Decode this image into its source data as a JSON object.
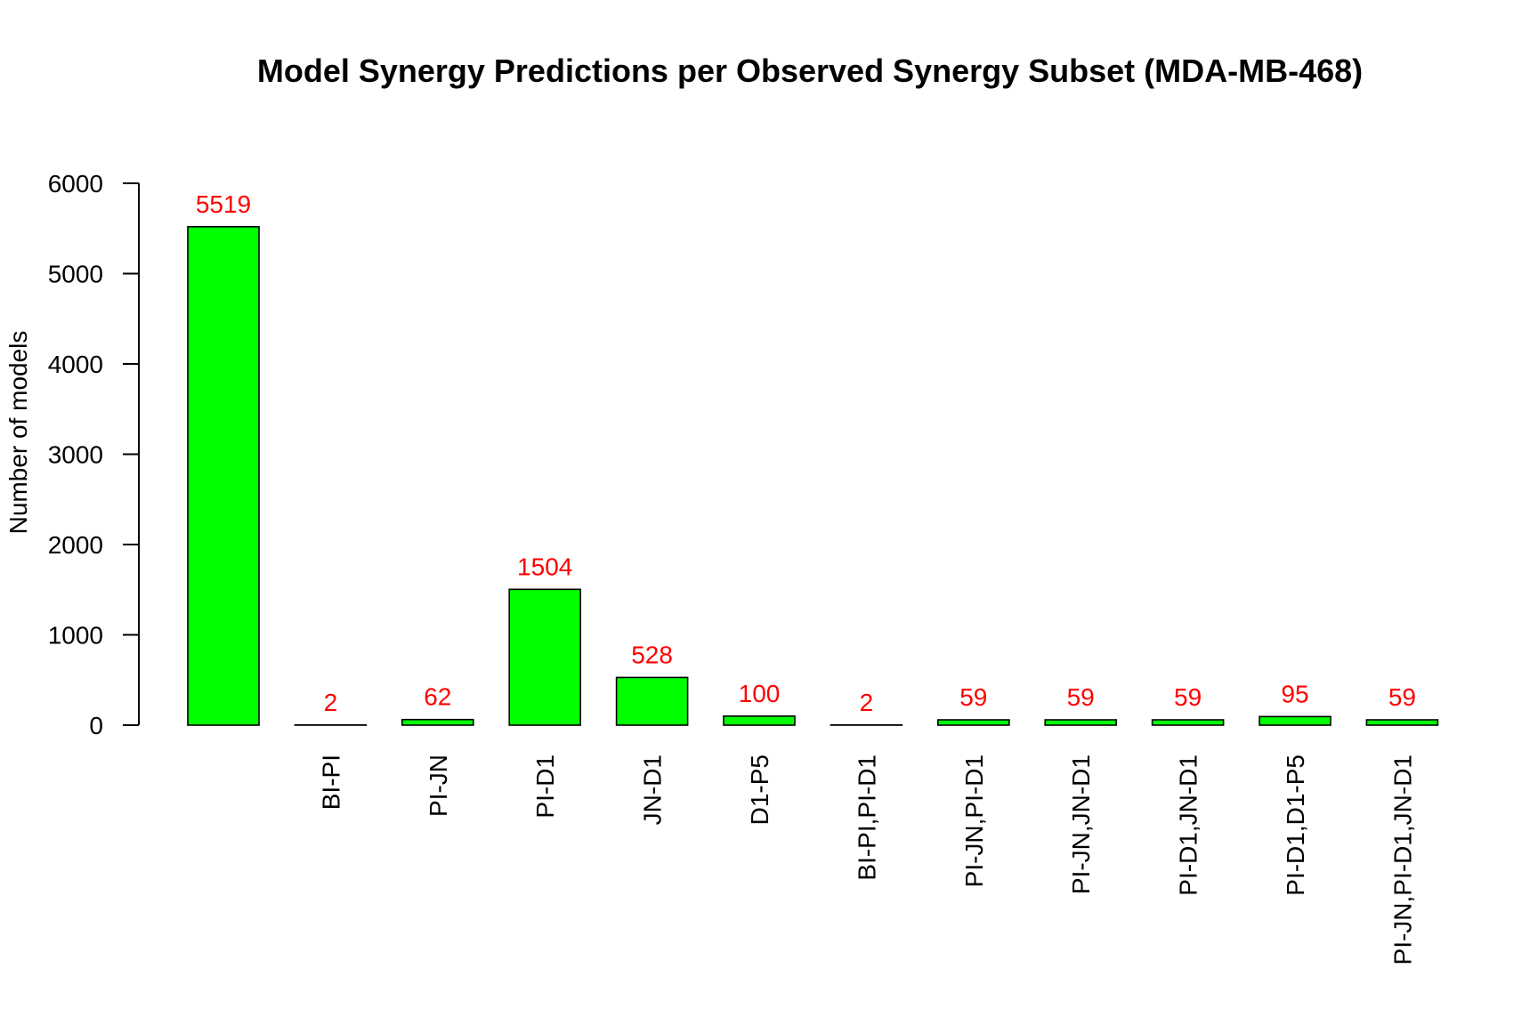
{
  "chart_data": {
    "type": "bar",
    "title": "Model Synergy Predictions per Observed Synergy Subset (MDA-MB-468)",
    "xlabel": "",
    "ylabel": "Number of models",
    "ylim": [
      0,
      6000
    ],
    "yticks": [
      0,
      1000,
      2000,
      3000,
      4000,
      5000,
      6000
    ],
    "categories": [
      "",
      "BI-PI",
      "PI-JN",
      "PI-D1",
      "JN-D1",
      "D1-P5",
      "BI-PI,PI-D1",
      "PI-JN,PI-D1",
      "PI-JN,JN-D1",
      "PI-D1,JN-D1",
      "PI-D1,D1-P5",
      "PI-JN,PI-D1,JN-D1"
    ],
    "values": [
      5519,
      2,
      62,
      1504,
      528,
      100,
      2,
      59,
      59,
      59,
      95,
      59
    ],
    "data_labels": [
      "5519",
      "2",
      "62",
      "1504",
      "528",
      "100",
      "2",
      "59",
      "59",
      "59",
      "95",
      "59"
    ],
    "bar_color": "#00ff00",
    "bar_border_color": "#000000",
    "label_color": "#ff0000",
    "grid": false,
    "legend": "none"
  }
}
